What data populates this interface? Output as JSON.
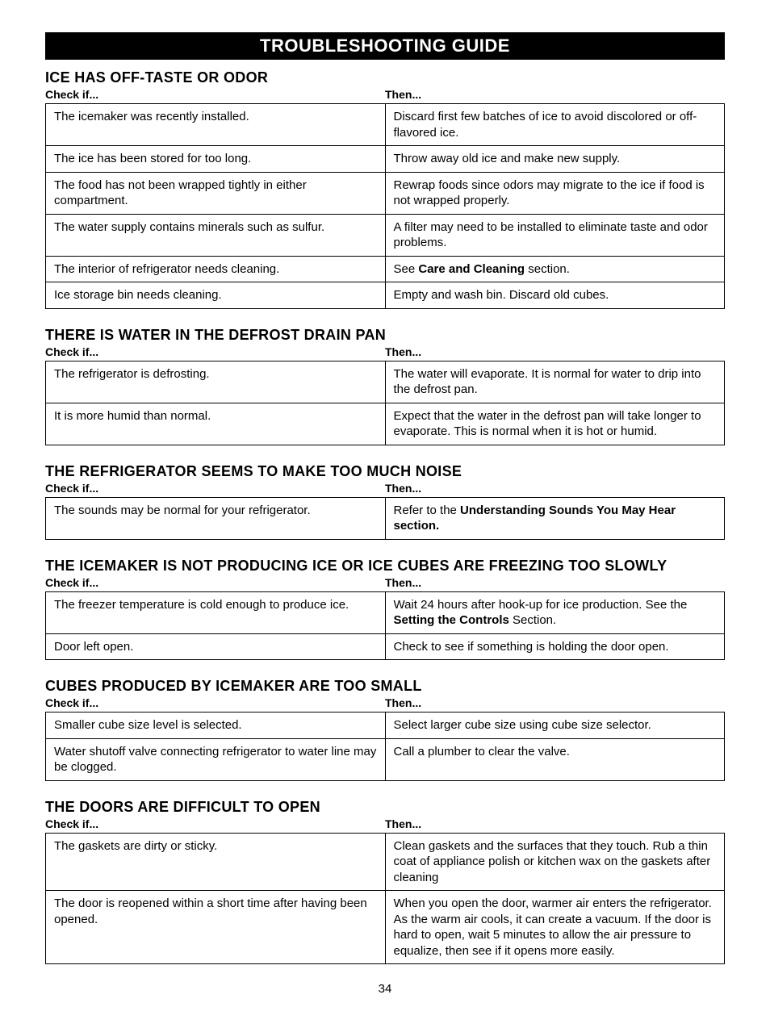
{
  "page_number": "34",
  "banner": "TROUBLESHOOTING GUIDE",
  "col_check": "Check if...",
  "col_then": "Then...",
  "colors": {
    "banner_bg": "#000000",
    "banner_fg": "#ffffff",
    "border": "#000000",
    "text": "#000000",
    "background": "#ffffff"
  },
  "sections": [
    {
      "title": "ICE HAS OFF-TASTE OR ODOR",
      "rows": [
        {
          "check": "The icemaker was recently installed.",
          "then": [
            {
              "t": "Discard first few batches of ice to avoid discolored or off-flavored ice."
            }
          ]
        },
        {
          "check": "The ice has been stored for too long.",
          "then": [
            {
              "t": "Throw away old ice and make new supply."
            }
          ]
        },
        {
          "check": "The food has not been wrapped tightly in either compartment.",
          "then": [
            {
              "t": "Rewrap foods since odors may migrate to the ice if food is not wrapped properly."
            }
          ]
        },
        {
          "check": "The water supply contains minerals such as sulfur.",
          "then": [
            {
              "t": "A filter may need to be installed to eliminate taste and odor problems."
            }
          ]
        },
        {
          "check": "The interior of refrigerator needs cleaning.",
          "then": [
            {
              "t": "See "
            },
            {
              "t": "Care and Cleaning",
              "b": true
            },
            {
              "t": " section."
            }
          ]
        },
        {
          "check": "Ice storage bin needs cleaning.",
          "then": [
            {
              "t": "Empty and wash bin. Discard old cubes."
            }
          ]
        }
      ]
    },
    {
      "title": "THERE IS WATER IN THE DEFROST DRAIN PAN",
      "rows": [
        {
          "check": "The refrigerator is defrosting.",
          "then": [
            {
              "t": "The water will evaporate. It is normal for water to drip into the defrost pan."
            }
          ]
        },
        {
          "check": "It is more humid than normal.",
          "then": [
            {
              "t": "Expect that the water in the defrost pan will take longer to evaporate. This is normal when it is hot or humid."
            }
          ]
        }
      ]
    },
    {
      "title": "THE REFRIGERATOR SEEMS TO MAKE TOO MUCH NOISE",
      "rows": [
        {
          "check": "The sounds may be normal for your refrigerator.",
          "then": [
            {
              "t": "Refer to the "
            },
            {
              "t": "Understanding Sounds You May Hear section.",
              "b": true
            }
          ]
        }
      ]
    },
    {
      "title": "THE ICEMAKER IS NOT PRODUCING ICE OR ICE CUBES ARE FREEZING TOO SLOWLY",
      "rows": [
        {
          "check": "The freezer temperature is cold enough to produce ice.",
          "then": [
            {
              "t": "Wait 24 hours after hook-up for ice production. See the "
            },
            {
              "t": "Setting the Controls",
              "b": true
            },
            {
              "t": " Section."
            }
          ]
        },
        {
          "check": "Door left open.",
          "then": [
            {
              "t": "Check to see if something is holding the door open."
            }
          ]
        }
      ]
    },
    {
      "title": "CUBES PRODUCED BY ICEMAKER ARE TOO SMALL",
      "rows": [
        {
          "check": "Smaller cube size level is selected.",
          "then": [
            {
              "t": "Select larger cube size using cube size selector."
            }
          ]
        },
        {
          "check": "Water shutoff valve connecting refrigerator to water line may be clogged.",
          "then": [
            {
              "t": "Call a plumber to clear the valve."
            }
          ]
        }
      ]
    },
    {
      "title": "THE DOORS ARE DIFFICULT TO OPEN",
      "rows": [
        {
          "check": "The gaskets are dirty or sticky.",
          "then": [
            {
              "t": "Clean gaskets and the surfaces that they touch. Rub a thin coat of appliance polish or kitchen wax on the gaskets after cleaning"
            }
          ]
        },
        {
          "check": "The door is reopened within a short time after having been opened.",
          "then": [
            {
              "t": "When you open the door, warmer air enters the refrigerator. As the warm air cools, it can create a vacuum. If the door is hard to open, wait 5 minutes to allow the air pressure to equalize, then see if it opens more easily."
            }
          ]
        }
      ]
    }
  ]
}
